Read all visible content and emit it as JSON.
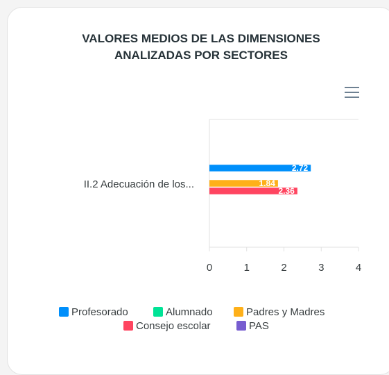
{
  "chart_data": {
    "type": "bar",
    "orientation": "horizontal",
    "title": "VALORES MEDIOS DE LAS DIMENSIONES ANALIZADAS POR SECTORES",
    "categories": [
      "II.2 Adecuación de los..."
    ],
    "series": [
      {
        "name": "Profesorado",
        "color": "#008FFB",
        "values": [
          2.72
        ]
      },
      {
        "name": "Alumnado",
        "color": "#00E396",
        "values": [
          null
        ]
      },
      {
        "name": "Padres y Madres",
        "color": "#FEB019",
        "values": [
          1.84
        ]
      },
      {
        "name": "Consejo escolar",
        "color": "#FF4560",
        "values": [
          2.36
        ]
      },
      {
        "name": "PAS",
        "color": "#775DD0",
        "values": [
          null
        ]
      }
    ],
    "xlim": [
      0,
      4
    ],
    "xticks": [
      0,
      1,
      2,
      3,
      4
    ],
    "legend": "bottom"
  }
}
